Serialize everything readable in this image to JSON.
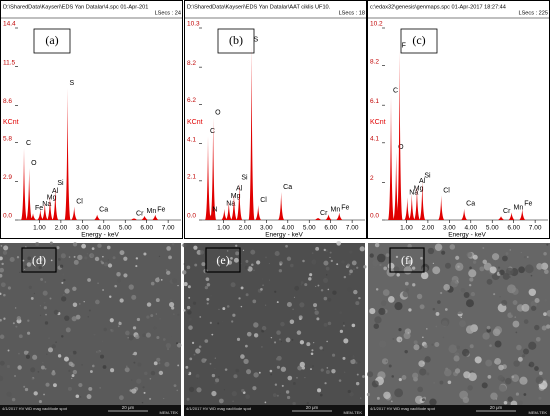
{
  "chart_data": [
    {
      "type": "spectrum",
      "header": "D:\\SharedData\\Kayseri\\EDS Yan Datalar\\4.spc  01-Apr-201",
      "lsecs": "LSecs : 24",
      "panel_label": "(a)",
      "ylabel": "KCnt",
      "xlabel": "Energy - keV",
      "color": "#e00000",
      "xlim": [
        0,
        7.6
      ],
      "ylim": [
        0,
        14.4
      ],
      "xticks": [
        {
          "value": 1,
          "label": "1.00"
        },
        {
          "value": 2,
          "label": "2.00"
        },
        {
          "value": 3,
          "label": "3.00"
        },
        {
          "value": 4,
          "label": "4.00"
        },
        {
          "value": 5,
          "label": "5.00"
        },
        {
          "value": 6,
          "label": "6.00"
        },
        {
          "value": 7,
          "label": "7.00"
        }
      ],
      "yticks": [
        {
          "value": 0,
          "label": "0.0"
        },
        2.9,
        5.8,
        8.6,
        11.5,
        14.4
      ],
      "categories": [
        "C",
        "O",
        "Fe",
        "Na",
        "Mg",
        "Al",
        "Si",
        "S",
        "Cl",
        "Ca",
        "Cr",
        "Mn",
        "Fe"
      ],
      "x": [
        0.28,
        0.52,
        0.7,
        1.04,
        1.25,
        1.49,
        1.74,
        2.31,
        2.62,
        3.69,
        5.41,
        5.9,
        6.4
      ],
      "values": [
        5.4,
        3.9,
        0.5,
        0.8,
        1.3,
        1.8,
        2.4,
        9.9,
        1.0,
        0.4,
        0.1,
        0.3,
        0.4
      ]
    },
    {
      "type": "spectrum",
      "header": "D:\\SharedData\\Kayseri\\EDS Yan Datalar\\AAT ciklis UF10.",
      "lsecs": "LSecs : 18",
      "panel_label": "(b)",
      "ylabel": "KCnt",
      "xlabel": "Energy - keV",
      "color": "#e00000",
      "xlim": [
        0,
        7.6
      ],
      "ylim": [
        0,
        10.3
      ],
      "xticks": [
        {
          "value": 1,
          "label": "1.00"
        },
        {
          "value": 2,
          "label": "2.00"
        },
        {
          "value": 3,
          "label": "3.00"
        },
        {
          "value": 4,
          "label": "4.00"
        },
        {
          "value": 5,
          "label": "5.00"
        },
        {
          "value": 6,
          "label": "6.00"
        },
        {
          "value": 7,
          "label": "7.00"
        }
      ],
      "yticks": [
        {
          "value": 0,
          "label": "0.0"
        },
        2.1,
        4.1,
        6.2,
        8.2,
        10.3
      ],
      "categories": [
        "C",
        "O",
        "N",
        "Na",
        "Mg",
        "Al",
        "Si",
        "S",
        "Cl",
        "Ca",
        "Cr",
        "Mn",
        "Fe"
      ],
      "x": [
        0.28,
        0.52,
        0.39,
        1.04,
        1.25,
        1.49,
        1.74,
        2.31,
        2.62,
        3.69,
        5.41,
        5.9,
        6.4
      ],
      "values": [
        4.5,
        5.5,
        0.3,
        0.6,
        1.0,
        1.4,
        2.0,
        9.4,
        0.8,
        1.5,
        0.1,
        0.3,
        0.4
      ]
    },
    {
      "type": "spectrum",
      "header": "c:\\edax32\\genesis\\genmaps.spc  01-Apr-2017 18:27:44",
      "lsecs": "LSecs : 225",
      "panel_label": "(c)",
      "ylabel": "KCnt",
      "xlabel": "Energy - keV",
      "color": "#e00000",
      "xlim": [
        0,
        7.6
      ],
      "ylim": [
        0,
        10.2
      ],
      "xticks": [
        {
          "value": 1,
          "label": "1.00"
        },
        {
          "value": 2,
          "label": "2.00"
        },
        {
          "value": 3,
          "label": "3.00"
        },
        {
          "value": 4,
          "label": "4.00"
        },
        {
          "value": 5,
          "label": "5.00"
        },
        {
          "value": 6,
          "label": "6.00"
        },
        {
          "value": 7,
          "label": "7.00"
        }
      ],
      "yticks": [
        {
          "value": 0,
          "label": "0.0"
        },
        2.0,
        4.1,
        6.1,
        8.2,
        10.2
      ],
      "categories": [
        "C",
        "O",
        "F",
        "Na",
        "Mg",
        "Al",
        "Si",
        "Cl",
        "Ca",
        "Cr",
        "Mn",
        "Fe"
      ],
      "x": [
        0.28,
        0.52,
        0.68,
        1.04,
        1.25,
        1.49,
        1.74,
        2.62,
        3.69,
        5.41,
        5.9,
        6.4
      ],
      "values": [
        6.6,
        3.6,
        9.0,
        1.2,
        1.4,
        1.8,
        2.1,
        1.3,
        0.6,
        0.2,
        0.4,
        0.6
      ]
    }
  ],
  "images": [
    {
      "label": "(d)",
      "scale": "20 μm",
      "footer": "4/1/2017  HV  WD  mag  vacMode  spot",
      "lab": "MEM-TEK"
    },
    {
      "label": "(e)",
      "scale": "20 μm",
      "footer": "4/1/2017  HV  WD  mag  vacMode  spot",
      "lab": "MEM-TEK"
    },
    {
      "label": "(f)",
      "scale": "20 μm",
      "footer": "4/1/2017  HV  WD  mag  vacMode  spot",
      "lab": "MEM-TEK"
    }
  ]
}
